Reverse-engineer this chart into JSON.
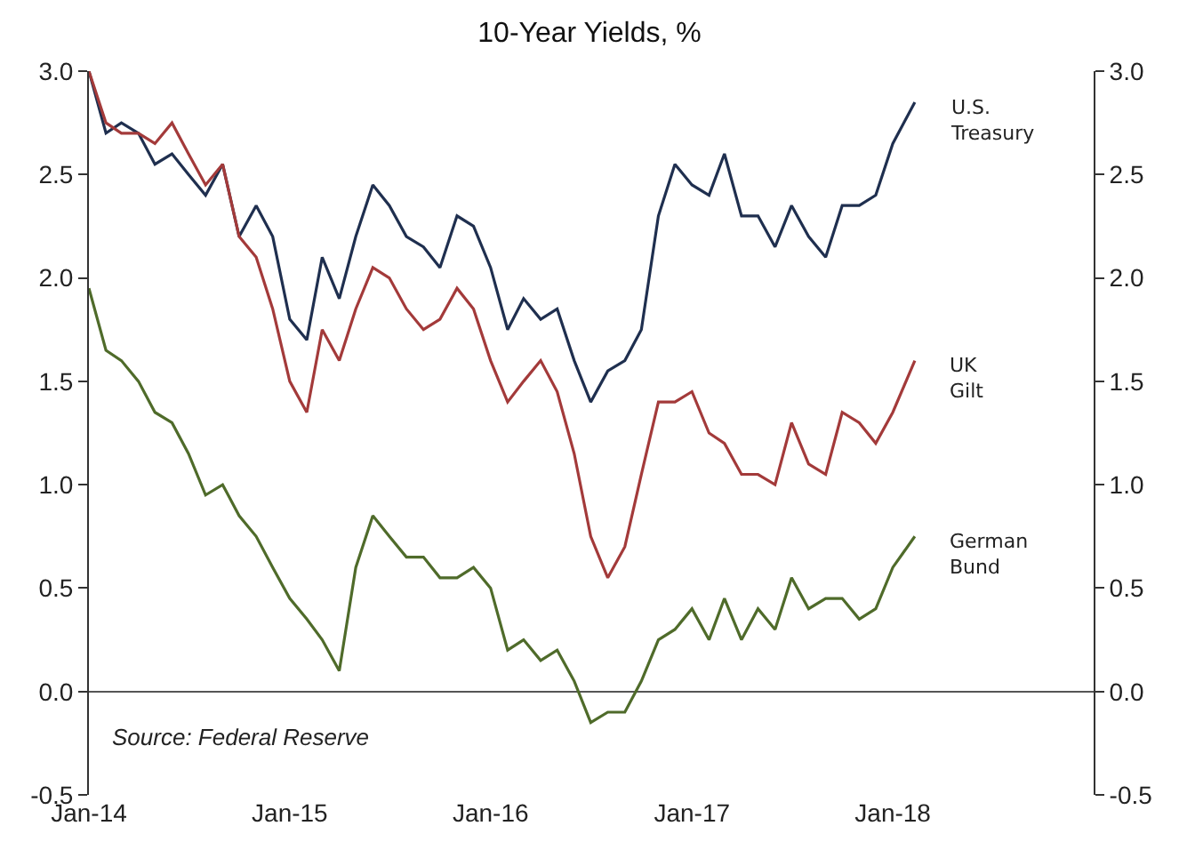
{
  "chart_data": {
    "type": "line",
    "title": "10-Year Yields, %",
    "x": [
      "2014-01",
      "2014-02",
      "2014-03",
      "2014-04",
      "2014-05",
      "2014-06",
      "2014-07",
      "2014-08",
      "2014-09",
      "2014-10",
      "2014-11",
      "2014-12",
      "2015-01",
      "2015-02",
      "2015-03",
      "2015-04",
      "2015-05",
      "2015-06",
      "2015-07",
      "2015-08",
      "2015-09",
      "2015-10",
      "2015-11",
      "2015-12",
      "2016-01",
      "2016-02",
      "2016-03",
      "2016-04",
      "2016-05",
      "2016-06",
      "2016-07",
      "2016-08",
      "2016-09",
      "2016-10",
      "2016-11",
      "2016-12",
      "2017-01",
      "2017-02",
      "2017-03",
      "2017-04",
      "2017-05",
      "2017-06",
      "2017-07",
      "2017-08",
      "2017-09",
      "2017-10",
      "2017-11",
      "2017-12",
      "2018-01",
      "2018-02-10"
    ],
    "series": [
      {
        "name": "U.S. Treasury",
        "color": "#1f2f4f",
        "values": [
          3.0,
          2.7,
          2.75,
          2.7,
          2.55,
          2.6,
          2.5,
          2.4,
          2.55,
          2.2,
          2.35,
          2.2,
          1.8,
          1.7,
          2.1,
          1.9,
          2.2,
          2.45,
          2.35,
          2.2,
          2.15,
          2.05,
          2.3,
          2.25,
          2.05,
          1.75,
          1.9,
          1.8,
          1.85,
          1.6,
          1.4,
          1.55,
          1.6,
          1.75,
          2.3,
          2.55,
          2.45,
          2.4,
          2.6,
          2.3,
          2.3,
          2.15,
          2.35,
          2.2,
          2.1,
          2.35,
          2.35,
          2.4,
          2.65,
          2.85
        ]
      },
      {
        "name": "UK Gilt",
        "color": "#a33a3a",
        "values": [
          3.0,
          2.75,
          2.7,
          2.7,
          2.65,
          2.75,
          2.6,
          2.45,
          2.55,
          2.2,
          2.1,
          1.85,
          1.5,
          1.35,
          1.75,
          1.6,
          1.85,
          2.05,
          2.0,
          1.85,
          1.75,
          1.8,
          1.95,
          1.85,
          1.6,
          1.4,
          1.5,
          1.6,
          1.45,
          1.15,
          0.75,
          0.55,
          0.7,
          1.05,
          1.4,
          1.4,
          1.45,
          1.25,
          1.2,
          1.05,
          1.05,
          1.0,
          1.3,
          1.1,
          1.05,
          1.35,
          1.3,
          1.2,
          1.35,
          1.6
        ]
      },
      {
        "name": "German Bund",
        "color": "#4f6b2a",
        "values": [
          1.95,
          1.65,
          1.6,
          1.5,
          1.35,
          1.3,
          1.15,
          0.95,
          1.0,
          0.85,
          0.75,
          0.6,
          0.45,
          0.35,
          0.25,
          0.1,
          0.6,
          0.85,
          0.75,
          0.65,
          0.65,
          0.55,
          0.55,
          0.6,
          0.5,
          0.2,
          0.25,
          0.15,
          0.2,
          0.05,
          -0.15,
          -0.1,
          -0.1,
          0.05,
          0.25,
          0.3,
          0.4,
          0.25,
          0.45,
          0.25,
          0.4,
          0.3,
          0.55,
          0.4,
          0.45,
          0.45,
          0.35,
          0.4,
          0.6,
          0.75
        ]
      }
    ],
    "xlim": [
      "2014-01",
      "2019-01"
    ],
    "xticks": [
      {
        "value": "2014-01",
        "label": "Jan-14"
      },
      {
        "value": "2015-01",
        "label": "Jan-15"
      },
      {
        "value": "2016-01",
        "label": "Jan-16"
      },
      {
        "value": "2017-01",
        "label": "Jan-17"
      },
      {
        "value": "2018-01",
        "label": "Jan-18"
      }
    ],
    "ylim": [
      -0.5,
      3.0
    ],
    "yticks": [
      {
        "value": -0.5,
        "label": "-0.5"
      },
      {
        "value": 0,
        "label": "0.0"
      },
      {
        "value": 0.5,
        "label": "0.5"
      },
      {
        "value": 1,
        "label": "1.0"
      },
      {
        "value": 1.5,
        "label": "1.5"
      },
      {
        "value": 2,
        "label": "2.0"
      },
      {
        "value": 2.5,
        "label": "2.5"
      },
      {
        "value": 3,
        "label": "3.0"
      }
    ],
    "y2lim": [
      -0.5,
      3.0
    ],
    "y2ticks": [
      {
        "value": -0.5,
        "label": "-0.5"
      },
      {
        "value": 0,
        "label": "0.0"
      },
      {
        "value": 0.5,
        "label": "0.5"
      },
      {
        "value": 1,
        "label": "1.0"
      },
      {
        "value": 1.5,
        "label": "1.5"
      },
      {
        "value": 2,
        "label": "2.0"
      },
      {
        "value": 2.5,
        "label": "2.5"
      },
      {
        "value": 3,
        "label": "3.0"
      }
    ],
    "annotations": [
      "Source: Federal Reserve"
    ],
    "legend": false,
    "marker": "none",
    "line_style": "solid"
  }
}
